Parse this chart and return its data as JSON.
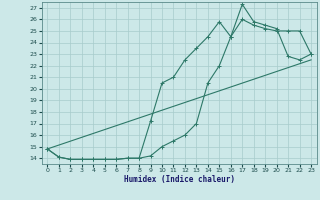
{
  "xlabel": "Humidex (Indice chaleur)",
  "bg_color": "#cce8e8",
  "line_color": "#2d7868",
  "xlim": [
    -0.5,
    23.5
  ],
  "ylim": [
    13.5,
    27.5
  ],
  "yticks": [
    14,
    15,
    16,
    17,
    18,
    19,
    20,
    21,
    22,
    23,
    24,
    25,
    26,
    27
  ],
  "xticks": [
    0,
    1,
    2,
    3,
    4,
    5,
    6,
    7,
    8,
    9,
    10,
    11,
    12,
    13,
    14,
    15,
    16,
    17,
    18,
    19,
    20,
    21,
    22,
    23
  ],
  "line1_x": [
    0,
    1,
    2,
    3,
    4,
    5,
    6,
    7,
    8,
    9,
    10,
    11,
    12,
    13,
    14,
    15,
    16,
    17,
    18,
    19,
    20,
    21,
    22,
    23
  ],
  "line1_y": [
    14.8,
    14.1,
    13.9,
    13.9,
    13.9,
    13.9,
    13.9,
    14.0,
    14.0,
    17.2,
    20.5,
    21.0,
    22.5,
    23.5,
    24.5,
    25.8,
    24.5,
    27.3,
    25.8,
    25.5,
    25.2,
    22.8,
    22.5,
    23.0
  ],
  "line2_x": [
    0,
    1,
    2,
    3,
    4,
    5,
    6,
    7,
    8,
    9,
    10,
    11,
    12,
    13,
    14,
    15,
    16,
    17,
    18,
    19,
    20,
    21,
    22,
    23
  ],
  "line2_y": [
    14.8,
    14.1,
    13.9,
    13.9,
    13.9,
    13.9,
    13.9,
    14.0,
    14.0,
    14.2,
    15.0,
    15.5,
    16.0,
    17.0,
    20.5,
    22.0,
    24.5,
    26.0,
    25.5,
    25.2,
    25.0,
    25.0,
    25.0,
    23.0
  ],
  "line3_x": [
    0,
    23
  ],
  "line3_y": [
    14.8,
    22.5
  ]
}
